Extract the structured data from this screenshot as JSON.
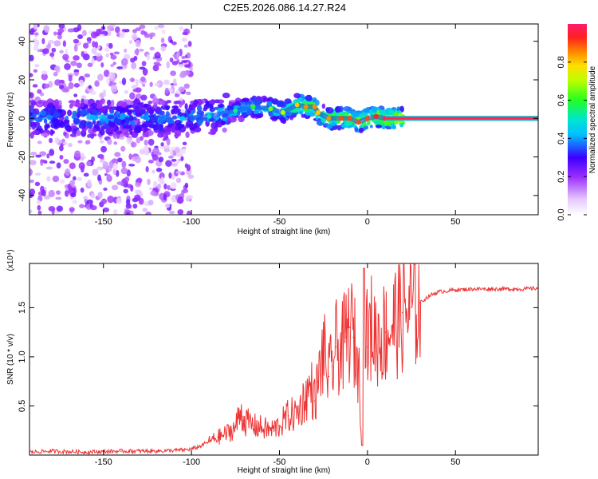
{
  "title": "C2E5.2026.086.14.27.R24",
  "colors": {
    "snr_line": "#ee3333",
    "ridge": "#ff2255",
    "cluster": "#2a1ad0"
  },
  "chart_data": [
    {
      "type": "heatmap",
      "name": "spectrogram",
      "xlabel": "Height of straight line (km)",
      "ylabel": "Frequency (Hz)",
      "xlim": [
        -192,
        97
      ],
      "ylim": [
        -50,
        49
      ],
      "xticks": [
        -150,
        -100,
        -50,
        0,
        50
      ],
      "yticks": [
        -40,
        -20,
        0,
        20,
        40
      ],
      "colorbar": {
        "label": "Normalized spectral amplitude",
        "range": [
          0,
          1
        ],
        "ticks": [
          "0.0",
          "0.2",
          "0.4",
          "0.6",
          "0.8"
        ]
      },
      "ridge": {
        "x": [
          -105,
          -90,
          -75,
          -65,
          -55,
          -48,
          -40,
          -35,
          -30,
          -28,
          -22,
          -15,
          -10,
          -5,
          0,
          5,
          10,
          97
        ],
        "y": [
          0,
          1,
          4,
          6,
          5,
          3,
          7,
          6,
          6,
          3,
          0,
          0,
          0,
          -2,
          0,
          1,
          0,
          0
        ],
        "amplitude": [
          0.45,
          0.5,
          0.55,
          0.6,
          0.65,
          0.7,
          0.8,
          0.85,
          0.85,
          0.8,
          0.85,
          0.9,
          0.9,
          0.9,
          0.9,
          0.95,
          1.0,
          1.0
        ]
      }
    },
    {
      "type": "line",
      "name": "snr",
      "xlabel": "Height of straight line (km)",
      "ylabel": "SNR (10 * v/v)",
      "y_multiplier": "(x10⁴)",
      "xlim": [
        -192,
        97
      ],
      "ylim": [
        0,
        1.95
      ],
      "xticks": [
        -150,
        -100,
        -50,
        0,
        50
      ],
      "yticks": [
        0.5,
        1.0,
        1.5
      ],
      "series": [
        {
          "name": "SNR",
          "x": [
            -192,
            -180,
            -160,
            -140,
            -120,
            -105,
            -100,
            -95,
            -90,
            -85,
            -80,
            -75,
            -72,
            -70,
            -65,
            -60,
            -55,
            -50,
            -45,
            -40,
            -35,
            -32,
            -30,
            -28,
            -25,
            -22,
            -20,
            -18,
            -15,
            -12,
            -10,
            -8,
            -5,
            -3,
            -2,
            0,
            2,
            5,
            10,
            15,
            20,
            25,
            30,
            35,
            40,
            50,
            60,
            70,
            80,
            90,
            97
          ],
          "y": [
            0.03,
            0.04,
            0.03,
            0.04,
            0.04,
            0.05,
            0.06,
            0.09,
            0.14,
            0.18,
            0.22,
            0.28,
            0.45,
            0.35,
            0.3,
            0.28,
            0.25,
            0.3,
            0.4,
            0.42,
            0.6,
            0.7,
            0.55,
            0.75,
            1.05,
            0.8,
            0.9,
            1.1,
            1.05,
            1.2,
            1.3,
            1.2,
            0.9,
            0.1,
            1.9,
            1.1,
            1.3,
            1.2,
            1.25,
            1.35,
            1.45,
            1.5,
            1.55,
            1.62,
            1.66,
            1.68,
            1.69,
            1.69,
            1.69,
            1.69,
            1.7
          ]
        }
      ]
    }
  ]
}
